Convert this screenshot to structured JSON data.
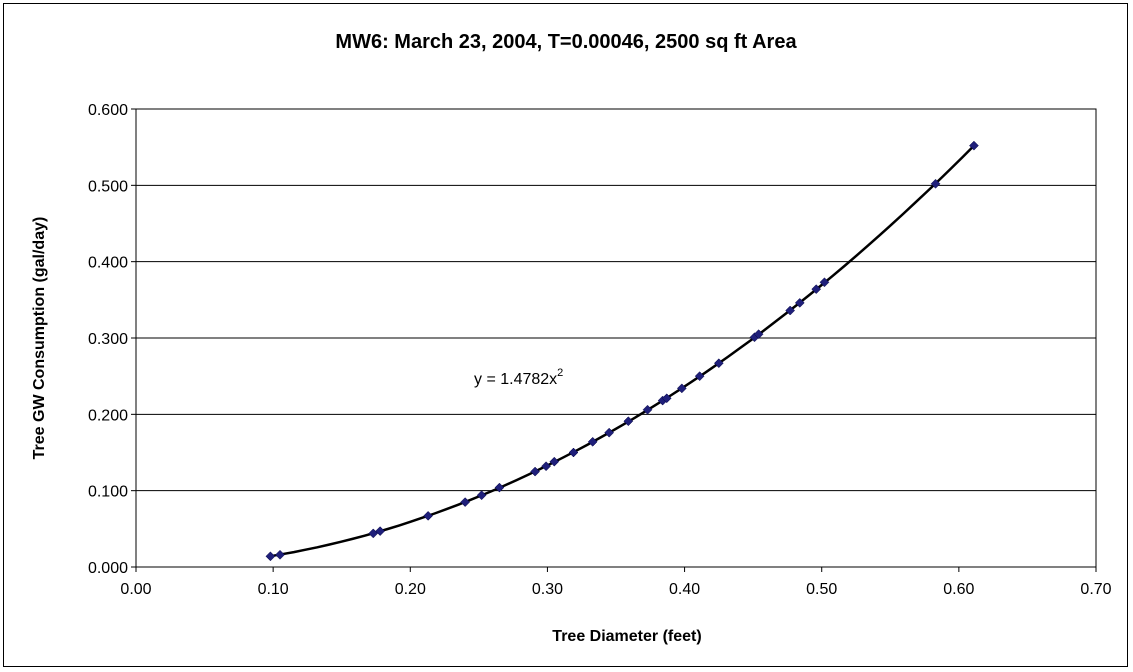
{
  "chart_data": {
    "type": "scatter",
    "title": "MW6: March 23, 2004, T=0.00046,  2500 sq ft Area",
    "xlabel": "Tree Diameter (feet)",
    "ylabel": "Tree GW Consumption (gal/day)",
    "xlim": [
      0.0,
      0.7
    ],
    "ylim": [
      0.0,
      0.6
    ],
    "x_ticks": [
      0.0,
      0.1,
      0.2,
      0.3,
      0.4,
      0.5,
      0.6,
      0.7
    ],
    "x_tick_labels": [
      "0.00",
      "0.10",
      "0.20",
      "0.30",
      "0.40",
      "0.50",
      "0.60",
      "0.70"
    ],
    "y_ticks": [
      0.0,
      0.1,
      0.2,
      0.3,
      0.4,
      0.5,
      0.6
    ],
    "y_tick_labels": [
      "0.000",
      "0.100",
      "0.200",
      "0.300",
      "0.400",
      "0.500",
      "0.600"
    ],
    "grid": "horizontal",
    "legend": "none",
    "marker_color": "#1f1f7a",
    "trendline_color": "#000000",
    "trendline": {
      "equation_base": "y = 1.4782x",
      "equation_exp": "2",
      "coefficient": 1.4782,
      "power": 2
    },
    "x": [
      0.098,
      0.105,
      0.173,
      0.178,
      0.213,
      0.24,
      0.252,
      0.265,
      0.291,
      0.299,
      0.305,
      0.319,
      0.333,
      0.345,
      0.359,
      0.373,
      0.384,
      0.387,
      0.398,
      0.411,
      0.425,
      0.451,
      0.454,
      0.477,
      0.484,
      0.496,
      0.502,
      0.583,
      0.611
    ],
    "y": [
      0.014,
      0.016,
      0.044,
      0.047,
      0.067,
      0.085,
      0.094,
      0.104,
      0.125,
      0.132,
      0.138,
      0.15,
      0.164,
      0.176,
      0.191,
      0.206,
      0.218,
      0.221,
      0.234,
      0.25,
      0.267,
      0.301,
      0.305,
      0.336,
      0.346,
      0.364,
      0.373,
      0.502,
      0.552
    ]
  }
}
